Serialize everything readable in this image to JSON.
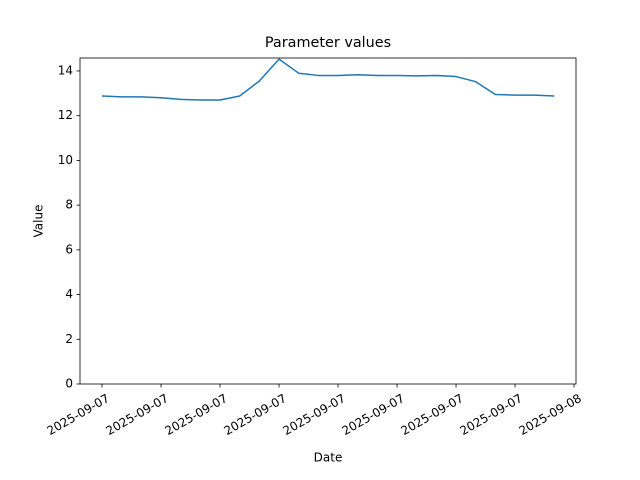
{
  "chart_data": {
    "type": "line",
    "title": "Parameter values",
    "x_label": "Date",
    "y_label": "Value",
    "x": [
      0,
      1,
      2,
      3,
      4,
      5,
      6,
      7,
      8,
      9,
      10,
      11,
      12,
      13,
      14,
      15,
      16,
      17,
      18,
      19,
      20,
      21,
      22,
      23
    ],
    "values": [
      12.88,
      12.84,
      12.84,
      12.8,
      12.73,
      12.7,
      12.7,
      12.88,
      13.55,
      14.53,
      13.9,
      13.8,
      13.8,
      13.83,
      13.8,
      13.8,
      13.78,
      13.8,
      13.75,
      13.52,
      12.95,
      12.92,
      12.92,
      12.88
    ],
    "color": "#1f77b4",
    "xlim": [
      -1.12,
      24.1
    ],
    "xticks": [
      {
        "value": 0,
        "label": "2025-09-07"
      },
      {
        "value": 3,
        "label": "2025-09-07"
      },
      {
        "value": 6,
        "label": "2025-09-07"
      },
      {
        "value": 9,
        "label": "2025-09-07"
      },
      {
        "value": 12,
        "label": "2025-09-07"
      },
      {
        "value": 15,
        "label": "2025-09-07"
      },
      {
        "value": 18,
        "label": "2025-09-07"
      },
      {
        "value": 21,
        "label": "2025-09-07"
      },
      {
        "value": 24,
        "label": "2025-09-08"
      }
    ],
    "ylim": [
      0,
      14.58
    ],
    "yticks": [
      0,
      2,
      4,
      6,
      8,
      10,
      12,
      14
    ],
    "grid": false
  }
}
